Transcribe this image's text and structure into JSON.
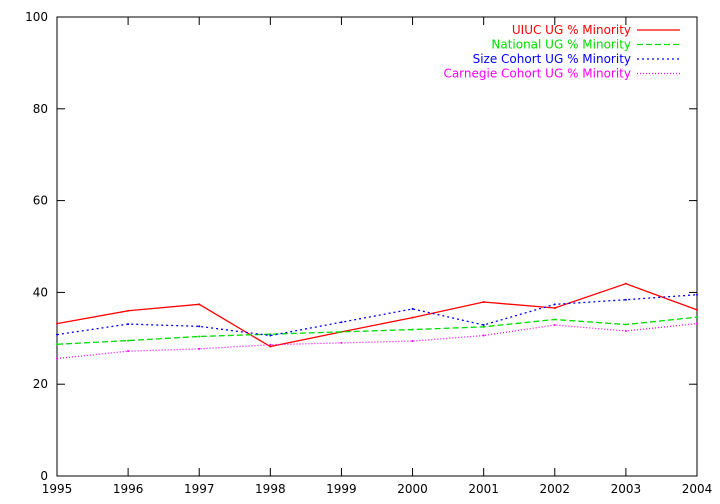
{
  "chart_data": {
    "type": "line",
    "title": "",
    "xlabel": "",
    "ylabel": "",
    "x": [
      1995,
      1996,
      1997,
      1998,
      1999,
      2000,
      2001,
      2002,
      2003,
      2004
    ],
    "xlim": [
      1995,
      2004
    ],
    "ylim": [
      0,
      100
    ],
    "x_ticks": [
      "1995",
      "1996",
      "1997",
      "1998",
      "1999",
      "2000",
      "2001",
      "2002",
      "2003",
      "2004"
    ],
    "y_ticks": [
      "0",
      "20",
      "40",
      "60",
      "80",
      "100"
    ],
    "grid": false,
    "legend_position": "top-right",
    "series": [
      {
        "name": "UIUC UG % Minority",
        "color": "#ff0000",
        "dash": "solid",
        "values": [
          33.2,
          36.0,
          37.4,
          28.2,
          31.4,
          34.5,
          37.9,
          36.6,
          41.9,
          36.2
        ]
      },
      {
        "name": "National UG % Minority",
        "color": "#00dd00",
        "dash": "dashed",
        "values": [
          28.7,
          29.5,
          30.4,
          30.9,
          31.4,
          31.9,
          32.5,
          34.1,
          33.0,
          34.6
        ]
      },
      {
        "name": "Size Cohort UG % Minority",
        "color": "#0000ff",
        "dash": "dotted",
        "values": [
          30.8,
          33.1,
          32.6,
          30.6,
          33.5,
          36.4,
          32.9,
          37.4,
          38.4,
          39.5
        ]
      },
      {
        "name": "Carnegie Cohort UG % Minority",
        "color": "#ff00ff",
        "dash": "fine-dotted",
        "values": [
          25.6,
          27.2,
          27.7,
          28.6,
          29.0,
          29.4,
          30.6,
          32.9,
          31.6,
          33.2
        ]
      }
    ]
  }
}
